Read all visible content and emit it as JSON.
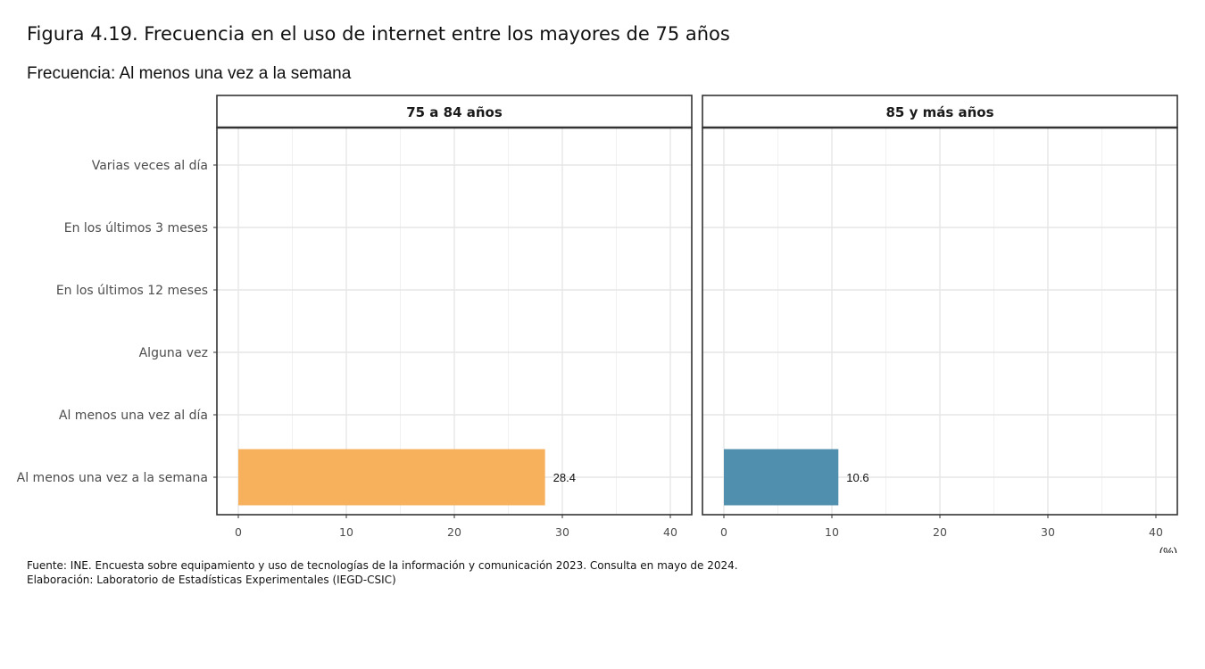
{
  "title": "Figura 4.19. Frecuencia en el uso de internet entre los mayores de 75 años",
  "subtitle": "Frecuencia: Al menos una vez a la semana",
  "source": "Fuente: INE. Encuesta sobre equipamiento y uso de tecnologías de la información y comunicación 2023. Consulta en mayo de 2024.",
  "credit": "Elaboración: Laboratorio de Estadísticas Experimentales (IEGD-CSIC)",
  "chart_data": {
    "type": "bar",
    "orientation": "horizontal",
    "unit_label": "(%)",
    "xlim": [
      0,
      40
    ],
    "x_ticks": [
      0,
      10,
      20,
      30,
      40
    ],
    "grid": true,
    "categories": [
      "Varias veces al día",
      "En los últimos 3 meses",
      "En los últimos 12 meses",
      "Alguna vez",
      "Al menos una vez al día",
      "Al menos una vez a la semana"
    ],
    "panels": [
      {
        "label": "75 a 84 años",
        "color": "#F7B05B",
        "values": [
          null,
          null,
          null,
          null,
          null,
          28.4
        ]
      },
      {
        "label": "85 y más años",
        "color": "#5090AE",
        "values": [
          null,
          null,
          null,
          null,
          null,
          10.6
        ]
      }
    ]
  }
}
